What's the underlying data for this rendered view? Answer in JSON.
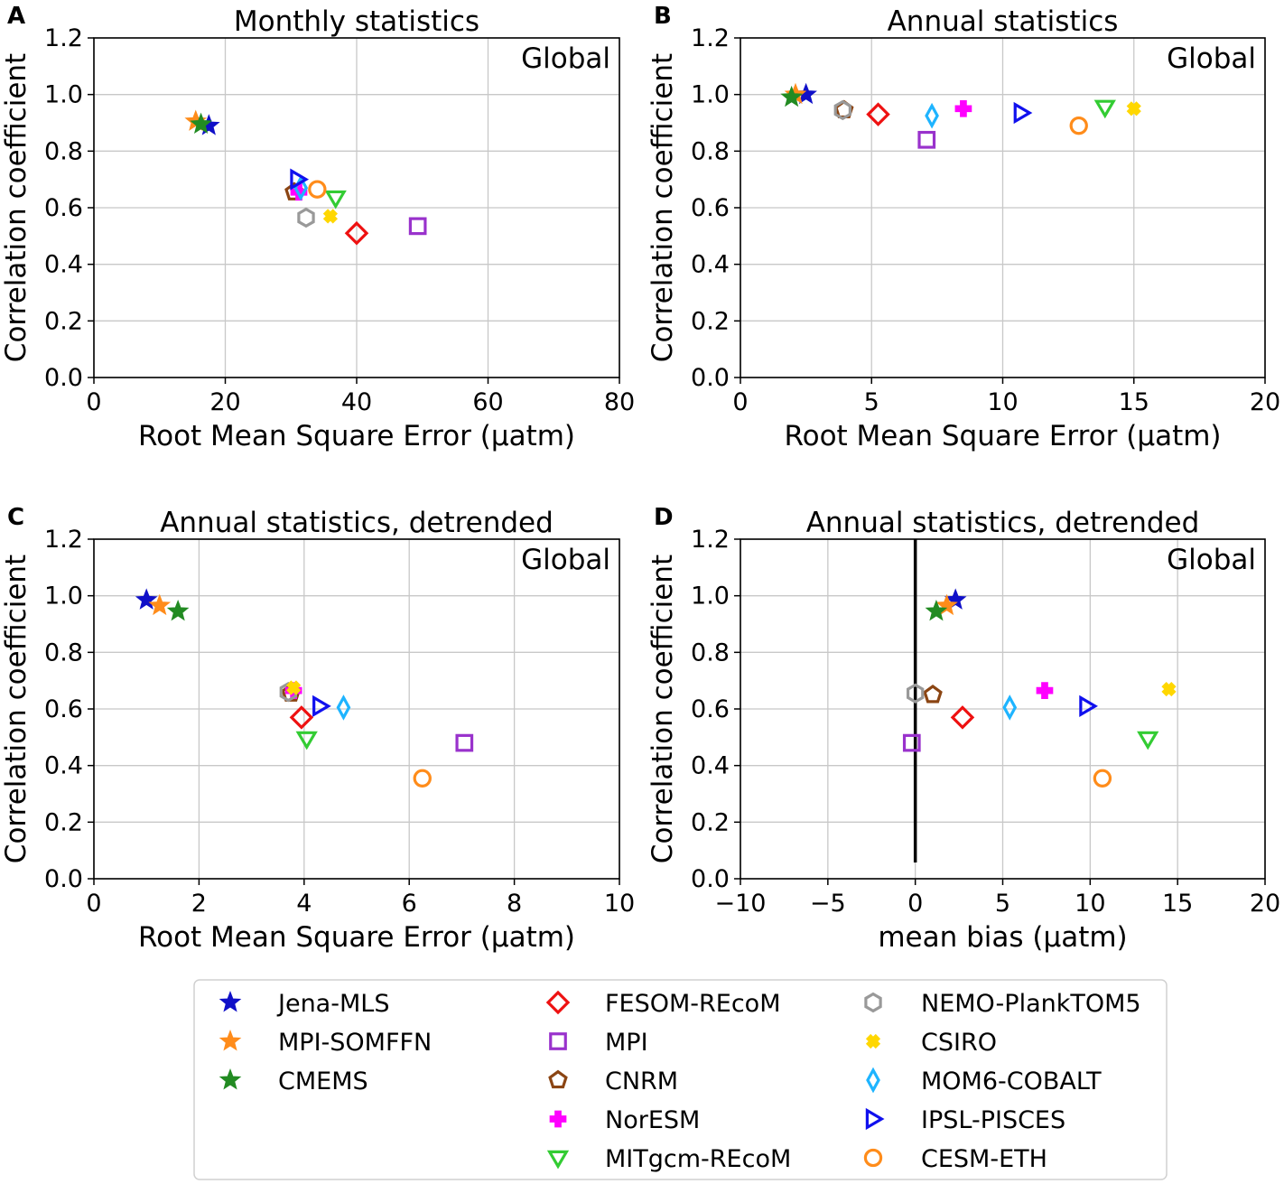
{
  "legend": [
    {
      "name": "Jena-MLS",
      "marker": "star",
      "color": "#1010c8"
    },
    {
      "name": "MPI-SOMFFN",
      "marker": "star",
      "color": "#ff8c1a"
    },
    {
      "name": "CMEMS",
      "marker": "star",
      "color": "#228b22"
    },
    {
      "name": "FESOM-REcoM",
      "marker": "diamond",
      "color": "#ee1111"
    },
    {
      "name": "MPI",
      "marker": "square",
      "color": "#9932cc"
    },
    {
      "name": "CNRM",
      "marker": "pentagon",
      "color": "#8b4513"
    },
    {
      "name": "NorESM",
      "marker": "plus",
      "color": "#ff00ff"
    },
    {
      "name": "MITgcm-REcoM",
      "marker": "triangle-down",
      "color": "#33cc33"
    },
    {
      "name": "NEMO-PlankTOM5",
      "marker": "hexagon",
      "color": "#999999"
    },
    {
      "name": "CSIRO",
      "marker": "x",
      "color": "#ffd700"
    },
    {
      "name": "MOM6-COBALT",
      "marker": "thin-diamond",
      "color": "#1eb4ff"
    },
    {
      "name": "IPSL-PISCES",
      "marker": "triangle-right",
      "color": "#1010ee"
    },
    {
      "name": "CESM-ETH",
      "marker": "circle",
      "color": "#ff8c1a"
    }
  ],
  "chart_data": [
    {
      "type": "scatter",
      "panel": "A",
      "title": "Monthly statistics",
      "region": "Global",
      "xlabel": "Root Mean Square Error (μatm)",
      "ylabel": "Correlation coefficient",
      "xlim": [
        0,
        80
      ],
      "ylim": [
        0,
        1.2
      ],
      "xticks": [
        0,
        20,
        40,
        60,
        80
      ],
      "xtick_labels": [
        "0",
        "20",
        "40",
        "60",
        "80"
      ],
      "yticks": [
        0,
        0.2,
        0.4,
        0.6,
        0.8,
        1.0,
        1.2
      ],
      "ytick_labels": [
        "0.0",
        "0.2",
        "0.4",
        "0.6",
        "0.8",
        "1.0",
        "1.2"
      ],
      "grid": true,
      "points": [
        {
          "name": "Jena-MLS",
          "x": 17.5,
          "y": 0.89
        },
        {
          "name": "MPI-SOMFFN",
          "x": 15.5,
          "y": 0.905
        },
        {
          "name": "CMEMS",
          "x": 16.3,
          "y": 0.895
        },
        {
          "name": "FESOM-REcoM",
          "x": 40.0,
          "y": 0.51
        },
        {
          "name": "MPI",
          "x": 49.3,
          "y": 0.535
        },
        {
          "name": "CNRM",
          "x": 30.5,
          "y": 0.655
        },
        {
          "name": "NorESM",
          "x": 31.2,
          "y": 0.655
        },
        {
          "name": "MITgcm-REcoM",
          "x": 36.8,
          "y": 0.635
        },
        {
          "name": "NEMO-PlankTOM5",
          "x": 32.3,
          "y": 0.565
        },
        {
          "name": "CSIRO",
          "x": 36.0,
          "y": 0.57
        },
        {
          "name": "MOM6-COBALT",
          "x": 31.5,
          "y": 0.67
        },
        {
          "name": "IPSL-PISCES",
          "x": 31.0,
          "y": 0.7
        },
        {
          "name": "CESM-ETH",
          "x": 34.0,
          "y": 0.665
        }
      ]
    },
    {
      "type": "scatter",
      "panel": "B",
      "title": "Annual statistics",
      "region": "Global",
      "xlabel": "Root Mean Square Error (μatm)",
      "ylabel": "Correlation coefficient",
      "xlim": [
        0,
        20
      ],
      "ylim": [
        0,
        1.2
      ],
      "xticks": [
        0,
        5,
        10,
        15,
        20
      ],
      "xtick_labels": [
        "0",
        "5",
        "10",
        "15",
        "20"
      ],
      "yticks": [
        0,
        0.2,
        0.4,
        0.6,
        0.8,
        1.0,
        1.2
      ],
      "ytick_labels": [
        "0.0",
        "0.2",
        "0.4",
        "0.6",
        "0.8",
        "1.0",
        "1.2"
      ],
      "grid": true,
      "points": [
        {
          "name": "Jena-MLS",
          "x": 2.5,
          "y": 1.0
        },
        {
          "name": "MPI-SOMFFN",
          "x": 2.1,
          "y": 1.0
        },
        {
          "name": "CMEMS",
          "x": 1.95,
          "y": 0.99
        },
        {
          "name": "FESOM-REcoM",
          "x": 5.25,
          "y": 0.93
        },
        {
          "name": "MPI",
          "x": 7.1,
          "y": 0.84
        },
        {
          "name": "CNRM",
          "x": 3.95,
          "y": 0.945
        },
        {
          "name": "NorESM",
          "x": 8.5,
          "y": 0.95
        },
        {
          "name": "MITgcm-REcoM",
          "x": 13.9,
          "y": 0.955
        },
        {
          "name": "NEMO-PlankTOM5",
          "x": 3.9,
          "y": 0.945
        },
        {
          "name": "CSIRO",
          "x": 15.0,
          "y": 0.95
        },
        {
          "name": "MOM6-COBALT",
          "x": 7.3,
          "y": 0.925
        },
        {
          "name": "IPSL-PISCES",
          "x": 10.7,
          "y": 0.935
        },
        {
          "name": "CESM-ETH",
          "x": 12.9,
          "y": 0.89
        }
      ]
    },
    {
      "type": "scatter",
      "panel": "C",
      "title": "Annual statistics, detrended",
      "region": "Global",
      "xlabel": "Root Mean Square Error (μatm)",
      "ylabel": "Correlation coefficient",
      "xlim": [
        0,
        10
      ],
      "ylim": [
        0,
        1.2
      ],
      "xticks": [
        0,
        2,
        4,
        6,
        8,
        10
      ],
      "xtick_labels": [
        "0",
        "2",
        "4",
        "6",
        "8",
        "10"
      ],
      "yticks": [
        0,
        0.2,
        0.4,
        0.6,
        0.8,
        1.0,
        1.2
      ],
      "ytick_labels": [
        "0.0",
        "0.2",
        "0.4",
        "0.6",
        "0.8",
        "1.0",
        "1.2"
      ],
      "grid": true,
      "points": [
        {
          "name": "Jena-MLS",
          "x": 1.0,
          "y": 0.985
        },
        {
          "name": "MPI-SOMFFN",
          "x": 1.25,
          "y": 0.965
        },
        {
          "name": "CMEMS",
          "x": 1.6,
          "y": 0.945
        },
        {
          "name": "FESOM-REcoM",
          "x": 3.95,
          "y": 0.57
        },
        {
          "name": "MPI",
          "x": 7.05,
          "y": 0.48
        },
        {
          "name": "CNRM",
          "x": 3.75,
          "y": 0.655
        },
        {
          "name": "NorESM",
          "x": 3.8,
          "y": 0.665
        },
        {
          "name": "MITgcm-REcoM",
          "x": 4.05,
          "y": 0.495
        },
        {
          "name": "NEMO-PlankTOM5",
          "x": 3.7,
          "y": 0.66
        },
        {
          "name": "CSIRO",
          "x": 3.8,
          "y": 0.675
        },
        {
          "name": "MOM6-COBALT",
          "x": 4.75,
          "y": 0.605
        },
        {
          "name": "IPSL-PISCES",
          "x": 4.3,
          "y": 0.61
        },
        {
          "name": "CESM-ETH",
          "x": 6.25,
          "y": 0.355
        }
      ]
    },
    {
      "type": "scatter",
      "panel": "D",
      "title": "Annual statistics, detrended",
      "region": "Global",
      "xlabel": "mean bias (μatm)",
      "ylabel": "Correlation coefficient",
      "xlim": [
        -10,
        20
      ],
      "ylim": [
        0,
        1.2
      ],
      "xticks": [
        -10,
        -5,
        0,
        5,
        10,
        15,
        20
      ],
      "xtick_labels": [
        "−10",
        "−5",
        "0",
        "5",
        "10",
        "15",
        "20"
      ],
      "yticks": [
        0,
        0.2,
        0.4,
        0.6,
        0.8,
        1.0,
        1.2
      ],
      "ytick_labels": [
        "0.0",
        "0.2",
        "0.4",
        "0.6",
        "0.8",
        "1.0",
        "1.2"
      ],
      "grid": true,
      "vline_x": 0,
      "points": [
        {
          "name": "Jena-MLS",
          "x": 2.3,
          "y": 0.985
        },
        {
          "name": "MPI-SOMFFN",
          "x": 1.8,
          "y": 0.965
        },
        {
          "name": "CMEMS",
          "x": 1.2,
          "y": 0.945
        },
        {
          "name": "FESOM-REcoM",
          "x": 2.7,
          "y": 0.57
        },
        {
          "name": "MPI",
          "x": -0.2,
          "y": 0.48
        },
        {
          "name": "CNRM",
          "x": 1.0,
          "y": 0.65
        },
        {
          "name": "NorESM",
          "x": 7.4,
          "y": 0.665
        },
        {
          "name": "MITgcm-REcoM",
          "x": 13.3,
          "y": 0.495
        },
        {
          "name": "NEMO-PlankTOM5",
          "x": 0.0,
          "y": 0.655
        },
        {
          "name": "CSIRO",
          "x": 14.5,
          "y": 0.67
        },
        {
          "name": "MOM6-COBALT",
          "x": 5.4,
          "y": 0.605
        },
        {
          "name": "IPSL-PISCES",
          "x": 9.8,
          "y": 0.61
        },
        {
          "name": "CESM-ETH",
          "x": 10.7,
          "y": 0.355
        }
      ]
    }
  ]
}
